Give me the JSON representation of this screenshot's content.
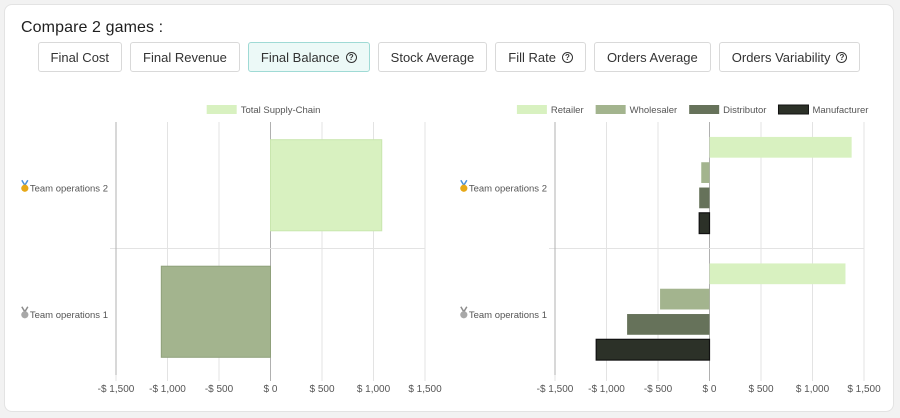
{
  "heading": "Compare 2 games :",
  "tabs": [
    {
      "label": "Final Cost",
      "help": false,
      "active": false
    },
    {
      "label": "Final Revenue",
      "help": false,
      "active": false
    },
    {
      "label": "Final Balance",
      "help": true,
      "active": true
    },
    {
      "label": "Stock Average",
      "help": false,
      "active": false
    },
    {
      "label": "Fill Rate",
      "help": true,
      "active": false
    },
    {
      "label": "Orders Average",
      "help": false,
      "active": false
    },
    {
      "label": "Orders Variability",
      "help": true,
      "active": false
    }
  ],
  "colors": {
    "total": "#d8f1c0",
    "retailer": "#d8f1c0",
    "wholesaler": "#a3b48e",
    "distributor": "#66725a",
    "manufacturer": "#2c3128",
    "grid": "#e3e3e3",
    "axis": "#b0b0b0",
    "text": "#555555"
  },
  "chart_data": [
    {
      "type": "bar",
      "orientation": "horizontal",
      "categories": [
        "Team operations 2",
        "Team operations 1"
      ],
      "category_icons": [
        "gold-medal",
        "silver-medal"
      ],
      "series": [
        {
          "name": "Total Supply-Chain",
          "values": [
            1080,
            -1060
          ],
          "colors": [
            "#d8f1c0",
            "#a3b48e"
          ]
        }
      ],
      "xlim": [
        -1500,
        1500
      ],
      "ticks": [
        -1500,
        -1000,
        -500,
        0,
        500,
        1000,
        1500
      ],
      "tick_labels": [
        "-$ 1,500",
        "-$ 1,000",
        "-$ 500",
        "$ 0",
        "$ 500",
        "$ 1,000",
        "$ 1,500"
      ],
      "legend": "top"
    },
    {
      "type": "bar",
      "orientation": "horizontal",
      "categories": [
        "Team operations 2",
        "Team operations 1"
      ],
      "category_icons": [
        "gold-medal",
        "silver-medal"
      ],
      "series": [
        {
          "name": "Retailer",
          "values": [
            1380,
            1320
          ]
        },
        {
          "name": "Wholesaler",
          "values": [
            -80,
            -480
          ]
        },
        {
          "name": "Distributor",
          "values": [
            -100,
            -800
          ]
        },
        {
          "name": "Manufacturer",
          "values": [
            -100,
            -1100
          ]
        }
      ],
      "xlim": [
        -1500,
        1500
      ],
      "ticks": [
        -1500,
        -1000,
        -500,
        0,
        500,
        1000,
        1500
      ],
      "tick_labels": [
        "-$ 1,500",
        "-$ 1,000",
        "-$ 500",
        "$ 0",
        "$ 500",
        "$ 1,000",
        "$ 1,500"
      ],
      "legend": "top"
    }
  ]
}
